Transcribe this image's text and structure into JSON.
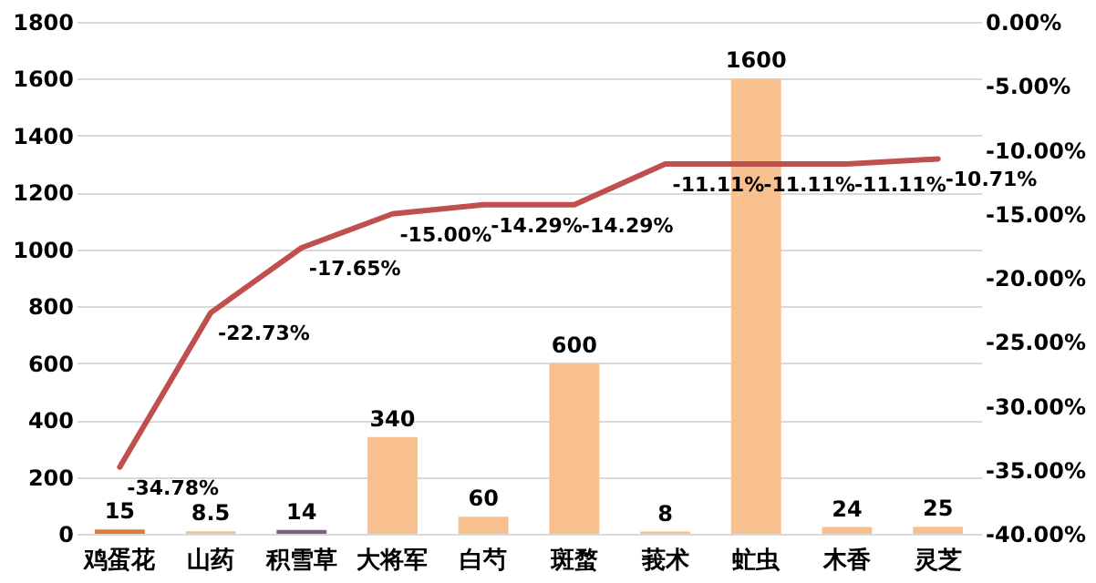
{
  "chart_data": {
    "type": "bar",
    "categories": [
      "鸡蛋花",
      "山药",
      "积雪草",
      "大将军",
      "白芍",
      "斑蝥",
      "莪术",
      "虻虫",
      "木香",
      "灵芝"
    ],
    "series": [
      {
        "colors": [
          "#e07b39",
          "#f9c08f",
          "#7f6084",
          "#f9c08f",
          "#f9c08f",
          "#f9c08f",
          "#f9c08f",
          "#f9c08f",
          "#f9c08f",
          "#f9c08f"
        ],
        "values": [
          15,
          8.5,
          14,
          340,
          60,
          600,
          8,
          1600,
          24,
          25
        ],
        "value_labels": [
          "15",
          "8.5",
          "14",
          "340",
          "60",
          "600",
          "8",
          "1600",
          "24",
          "25"
        ]
      },
      {
        "type": "line",
        "axis": "y2",
        "color": "#c0504d",
        "values": [
          -34.78,
          -22.73,
          -17.65,
          -15.0,
          -14.29,
          -14.29,
          -11.11,
          -11.11,
          -11.11,
          -10.71
        ],
        "value_labels": [
          "-34.78%",
          "-22.73%",
          "-17.65%",
          "-15.00%",
          "-14.29%",
          "-14.29%",
          "-11.11%",
          "-11.11%",
          "-11.11%",
          "-10.71%"
        ]
      }
    ],
    "ylim": [
      0,
      1800
    ],
    "yticks": [
      0,
      200,
      400,
      600,
      800,
      1000,
      1200,
      1400,
      1600,
      1800
    ],
    "y2lim": [
      -40,
      0
    ],
    "y2ticks": [
      {
        "value": -40,
        "label": "-40.00%"
      },
      {
        "value": -35,
        "label": "-35.00%"
      },
      {
        "value": -30,
        "label": "-30.00%"
      },
      {
        "value": -25,
        "label": "-25.00%"
      },
      {
        "value": -20,
        "label": "-20.00%"
      },
      {
        "value": -15,
        "label": "-15.00%"
      },
      {
        "value": -10,
        "label": "-10.00%"
      },
      {
        "value": -5,
        "label": "-5.00%"
      },
      {
        "value": 0,
        "label": "0.00%"
      }
    ],
    "grid": "y",
    "marker": "none",
    "line_style": "solid"
  }
}
